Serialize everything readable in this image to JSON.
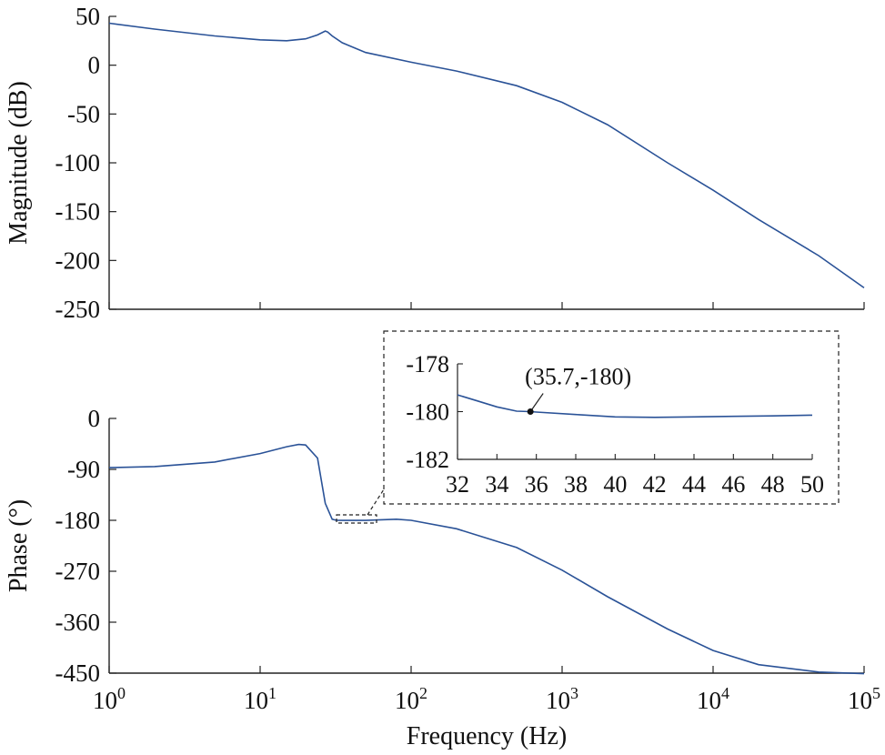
{
  "chart_data": [
    {
      "type": "line",
      "panel": "magnitude",
      "xscale": "log",
      "xlim": [
        1,
        100000
      ],
      "ylim": [
        -250,
        50
      ],
      "ylabel": "Magnitude (dB)",
      "yticks": [
        "50",
        "0",
        "-50",
        "-100",
        "-150",
        "-200",
        "-250"
      ],
      "x": [
        1,
        2,
        5,
        10,
        15,
        20,
        24,
        27,
        28,
        30,
        35,
        50,
        100,
        200,
        500,
        1000,
        2000,
        5000,
        10000,
        20000,
        50000,
        100000
      ],
      "y": [
        43,
        37,
        30,
        26,
        25,
        27,
        31,
        35,
        34,
        30,
        23,
        13,
        3,
        -6,
        -21,
        -38,
        -61,
        -100,
        -128,
        -158,
        -195,
        -228
      ],
      "color": "#2a5297"
    },
    {
      "type": "line",
      "panel": "phase",
      "xscale": "log",
      "xlim": [
        1,
        100000
      ],
      "ylim": [
        -450,
        0
      ],
      "xlabel": "Frequency (Hz)",
      "ylabel": "Phase (°)",
      "yticks": [
        "0",
        "-90",
        "-180",
        "-270",
        "-360",
        "-450"
      ],
      "xticks": [
        {
          "base": "10",
          "exp": "0"
        },
        {
          "base": "10",
          "exp": "1"
        },
        {
          "base": "10",
          "exp": "2"
        },
        {
          "base": "10",
          "exp": "3"
        },
        {
          "base": "10",
          "exp": "4"
        },
        {
          "base": "10",
          "exp": "5"
        }
      ],
      "x": [
        1,
        2,
        5,
        10,
        15,
        18,
        20,
        24,
        27,
        30,
        32,
        35,
        40,
        50,
        80,
        100,
        200,
        500,
        1000,
        2000,
        5000,
        10000,
        20000,
        50000,
        100000
      ],
      "y": [
        -87,
        -85,
        -77,
        -62,
        -50,
        -46,
        -47,
        -70,
        -150,
        -178,
        -180,
        -180.1,
        -180.2,
        -180.1,
        -178,
        -180,
        -195,
        -228,
        -268,
        -315,
        -372,
        -410,
        -435,
        -448,
        -451
      ],
      "color": "#2a5297"
    },
    {
      "type": "line",
      "panel": "inset",
      "xlim": [
        32,
        50
      ],
      "ylim": [
        -182,
        -178
      ],
      "yticks": [
        "-178",
        "-180",
        "-182"
      ],
      "xticks": [
        "32",
        "34",
        "36",
        "38",
        "40",
        "42",
        "44",
        "46",
        "48",
        "50"
      ],
      "x": [
        32,
        33,
        34,
        35,
        35.7,
        36,
        38,
        40,
        42,
        44,
        46,
        48,
        50
      ],
      "y": [
        -179.3,
        -179.55,
        -179.8,
        -179.98,
        -180.0,
        -180.02,
        -180.12,
        -180.22,
        -180.24,
        -180.22,
        -180.2,
        -180.18,
        -180.15
      ],
      "annotation": {
        "x": 35.7,
        "y": -180,
        "text": "(35.7,-180)"
      },
      "color": "#2a5297"
    }
  ]
}
